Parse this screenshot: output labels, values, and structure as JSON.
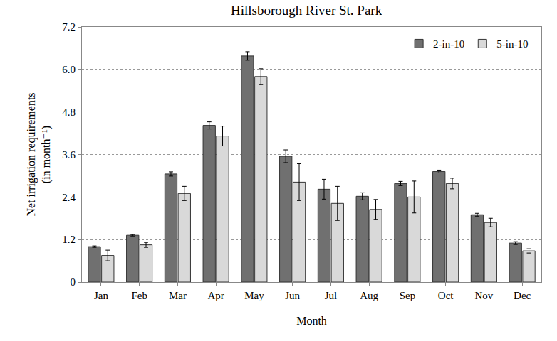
{
  "chart_data": {
    "type": "bar",
    "title": "Hillsborough River St. Park",
    "x_label": "Month",
    "y_label": [
      "Net irrigation requirements",
      "(in month⁻¹)"
    ],
    "categories": [
      "Jan",
      "Feb",
      "Mar",
      "Apr",
      "May",
      "Jun",
      "Jul",
      "Aug",
      "Sep",
      "Oct",
      "Nov",
      "Dec"
    ],
    "series": [
      {
        "name": "2-in-10",
        "color": "#707070",
        "values": [
          1.0,
          1.32,
          3.05,
          4.42,
          6.38,
          3.55,
          2.62,
          2.42,
          2.78,
          3.12,
          1.9,
          1.1
        ],
        "errors": [
          0.02,
          0.02,
          0.06,
          0.1,
          0.12,
          0.18,
          0.28,
          0.1,
          0.06,
          0.04,
          0.04,
          0.04
        ]
      },
      {
        "name": "5-in-10",
        "color": "#d9d9d9",
        "values": [
          0.75,
          1.05,
          2.5,
          4.12,
          5.8,
          2.82,
          2.22,
          2.05,
          2.4,
          2.78,
          1.68,
          0.88
        ],
        "errors": [
          0.15,
          0.07,
          0.2,
          0.28,
          0.22,
          0.52,
          0.48,
          0.28,
          0.45,
          0.15,
          0.12,
          0.06
        ]
      }
    ],
    "ylim": [
      0,
      7.2
    ],
    "yticks": [
      0,
      1.2,
      2.4,
      3.6,
      4.8,
      {
        "value": 6,
        "label": "6.0"
      },
      7.2
    ],
    "grid": true,
    "legend": "top right"
  }
}
